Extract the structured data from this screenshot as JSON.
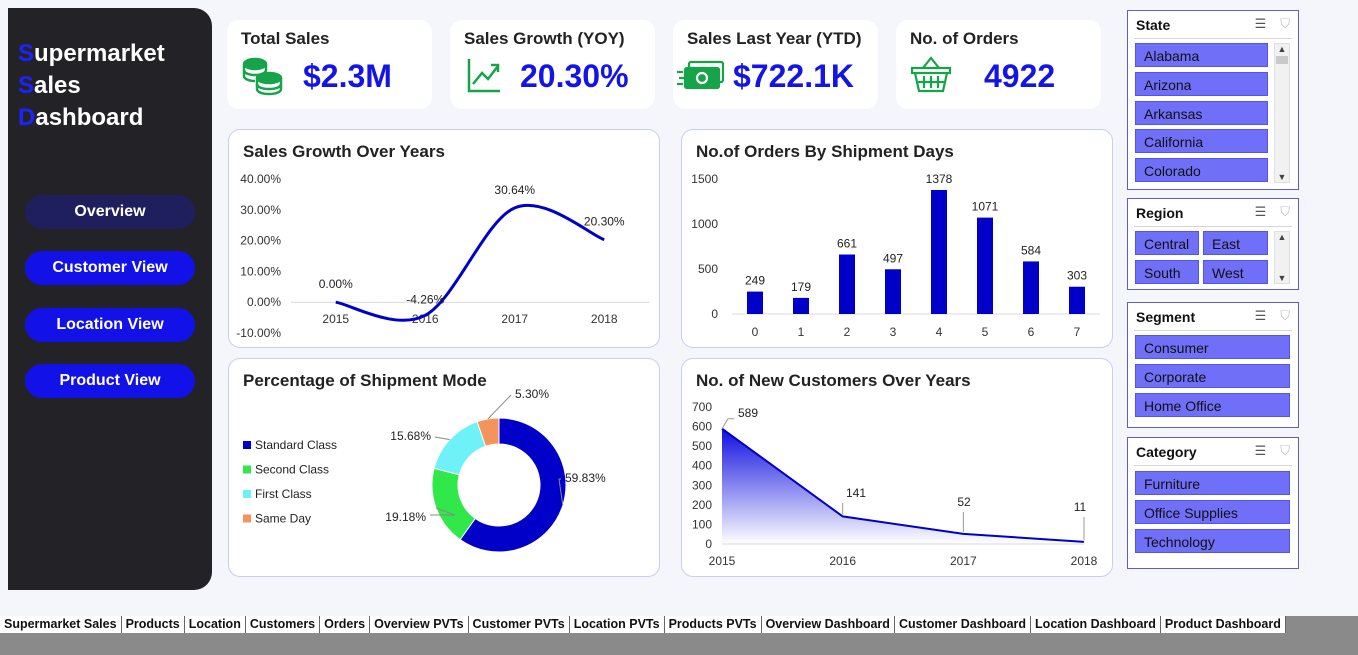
{
  "sidebar": {
    "brand_line1_first": "S",
    "brand_line1_rest": "upermarket",
    "brand_line2_first": "S",
    "brand_line2_rest": "ales",
    "brand_line3_first": "D",
    "brand_line3_rest": "ashboard",
    "nav": [
      "Overview",
      "Customer View",
      "Location View",
      "Product View"
    ]
  },
  "kpis": [
    {
      "label": "Total Sales",
      "value": "$2.3M",
      "icon": "coins-icon"
    },
    {
      "label": "Sales Growth (YOY)",
      "value": "20.30%",
      "icon": "trend-up-icon"
    },
    {
      "label": "Sales Last Year (YTD)",
      "value": "$722.1K",
      "icon": "cash-icon"
    },
    {
      "label": "No. of Orders",
      "value": "4922",
      "icon": "basket-icon"
    }
  ],
  "colors": {
    "accent": "#1414e6",
    "navy": "#0000c8",
    "green": "#31e84a",
    "cyan": "#6ef2f7",
    "orange": "#f4935b"
  },
  "chart_data": [
    {
      "type": "line",
      "title": "Sales Growth Over Years",
      "categories": [
        "2015",
        "2016",
        "2017",
        "2018"
      ],
      "values": [
        0.0,
        -4.26,
        30.64,
        20.3
      ],
      "value_labels": [
        "0.00%",
        "-4.26%",
        "30.64%",
        "20.30%"
      ],
      "y_ticks": [
        "40.00%",
        "30.00%",
        "20.00%",
        "10.00%",
        "0.00%",
        "-10.00%"
      ],
      "ylim": [
        -10,
        40
      ]
    },
    {
      "type": "bar",
      "title": "No.of Orders By Shipment Days",
      "categories": [
        "0",
        "1",
        "2",
        "3",
        "4",
        "5",
        "6",
        "7"
      ],
      "values": [
        249,
        179,
        661,
        497,
        1378,
        1071,
        584,
        303
      ],
      "y_ticks": [
        "1500",
        "1000",
        "500",
        "0"
      ],
      "ylim": [
        0,
        1500
      ]
    },
    {
      "type": "pie",
      "title": "Percentage of Shipment Mode",
      "legend_position": "left",
      "slices": [
        {
          "name": "Standard Class",
          "value": 59.83,
          "label": "59.83%"
        },
        {
          "name": "Second Class",
          "value": 19.18,
          "label": "19.18%"
        },
        {
          "name": "First Class",
          "value": 15.68,
          "label": "15.68%"
        },
        {
          "name": "Same Day",
          "value": 5.3,
          "label": "5.30%"
        }
      ]
    },
    {
      "type": "area",
      "title": "No. of New Customers Over Years",
      "categories": [
        "2015",
        "2016",
        "2017",
        "2018"
      ],
      "values": [
        589,
        141,
        52,
        11
      ],
      "y_ticks": [
        "700",
        "600",
        "500",
        "400",
        "300",
        "200",
        "100",
        "0"
      ],
      "ylim": [
        0,
        700
      ]
    }
  ],
  "slicers": {
    "state": {
      "title": "State",
      "items": [
        "Alabama",
        "Arizona",
        "Arkansas",
        "California",
        "Colorado"
      ]
    },
    "region": {
      "title": "Region",
      "items": [
        "Central",
        "East",
        "South",
        "West"
      ]
    },
    "segment": {
      "title": "Segment",
      "items": [
        "Consumer",
        "Corporate",
        "Home Office"
      ]
    },
    "category": {
      "title": "Category",
      "items": [
        "Furniture",
        "Office Supplies",
        "Technology"
      ]
    }
  },
  "sheet_tabs": [
    "Supermarket Sales",
    "Products",
    "Location",
    "Customers",
    "Orders",
    "Overview PVTs",
    "Customer PVTs",
    "Location PVTs",
    "Products PVTs",
    "Overview Dashboard",
    "Customer Dashboard",
    "Location Dashboard",
    "Product Dashboard"
  ]
}
